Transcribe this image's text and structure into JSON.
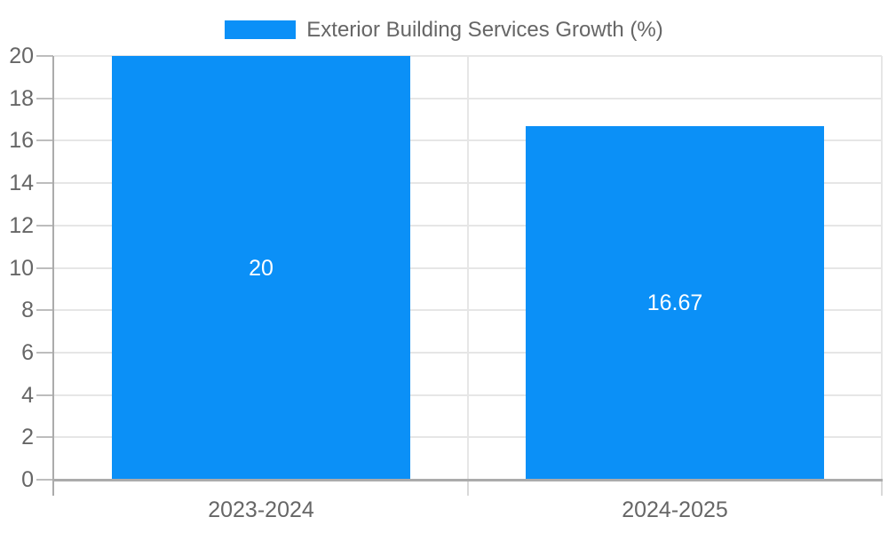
{
  "chart_data": {
    "type": "bar",
    "title": "",
    "legend": {
      "position": "top",
      "label": "Exterior Building Services Growth (%)"
    },
    "categories": [
      "2023-2024",
      "2024-2025"
    ],
    "series": [
      {
        "name": "Exterior Building Services Growth (%)",
        "values": [
          20,
          16.67
        ]
      }
    ],
    "data_labels": [
      "20",
      "16.67"
    ],
    "xlabel": "",
    "ylabel": "",
    "ylim": [
      0,
      20
    ],
    "yticks": [
      0,
      2,
      4,
      6,
      8,
      10,
      12,
      14,
      16,
      18,
      20
    ],
    "grid": true,
    "colors": {
      "bar": "#0b90f7",
      "grid": "#e6e6e6",
      "axis_border": "#ababab",
      "tick": "#bdbdbd",
      "boundary_tick": "#d9d9d9",
      "label_text": "#666666",
      "data_label_text": "#ffffff",
      "background": "#ffffff"
    }
  }
}
